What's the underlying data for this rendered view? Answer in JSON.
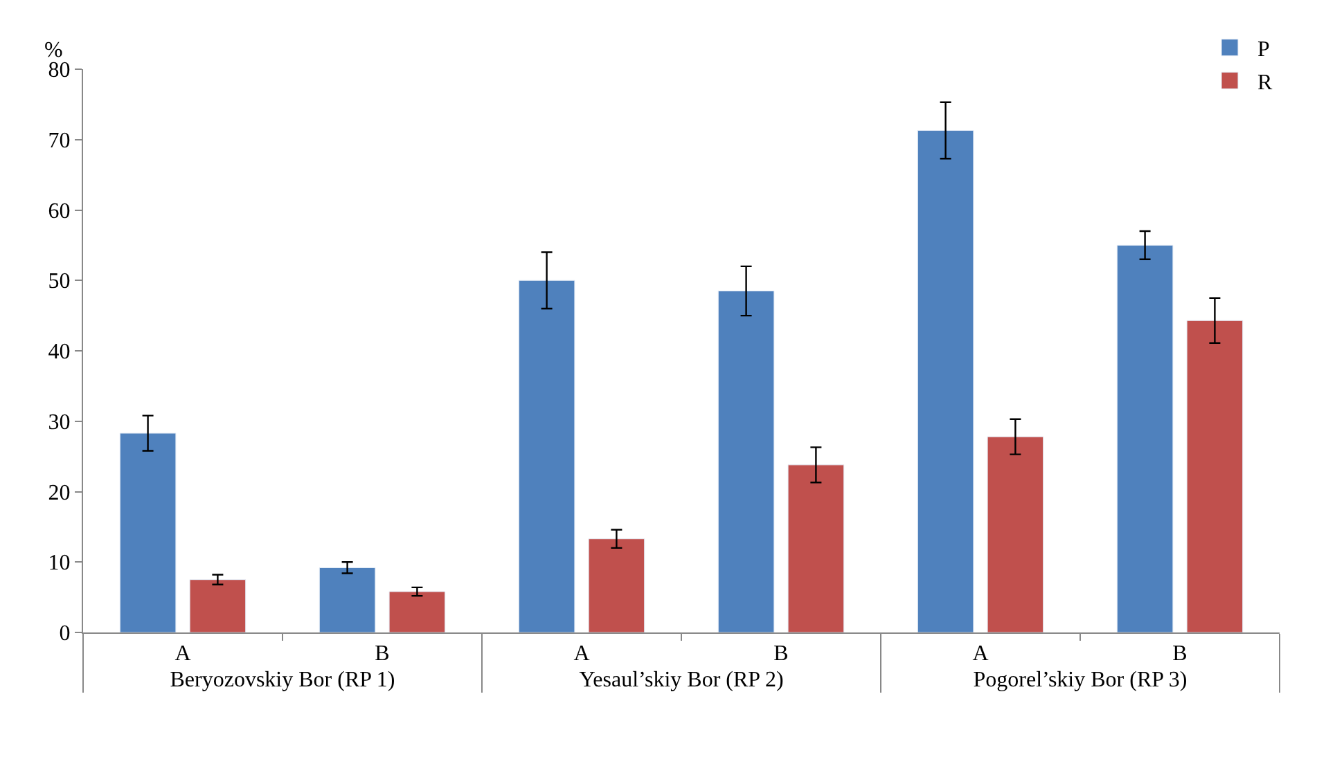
{
  "chart_data": {
    "type": "bar",
    "ylabel": "%",
    "categories": [
      "A",
      "B",
      "A",
      "B",
      "A",
      "B"
    ],
    "annotations": [
      "Beryozovskiy Bor (RP 1)",
      "Yesaul’skiy Bor (RP 2)",
      "Pogorel’skiy Bor (RP 3)"
    ],
    "series": [
      {
        "name": "P",
        "color": "#4f81bd",
        "values": [
          28.3,
          9.2,
          50,
          48.5,
          71.3,
          55
        ],
        "errors": [
          2.5,
          0.8,
          4,
          3.5,
          4,
          2
        ]
      },
      {
        "name": "R",
        "color": "#c0504d",
        "values": [
          7.5,
          5.8,
          13.3,
          23.8,
          27.8,
          44.3
        ],
        "errors": [
          0.7,
          0.6,
          1.3,
          2.5,
          2.5,
          3.2
        ]
      }
    ],
    "ylim": [
      0,
      80
    ],
    "yticks": [
      0,
      10,
      20,
      30,
      40,
      50,
      60,
      70,
      80
    ],
    "legend": "top right"
  }
}
